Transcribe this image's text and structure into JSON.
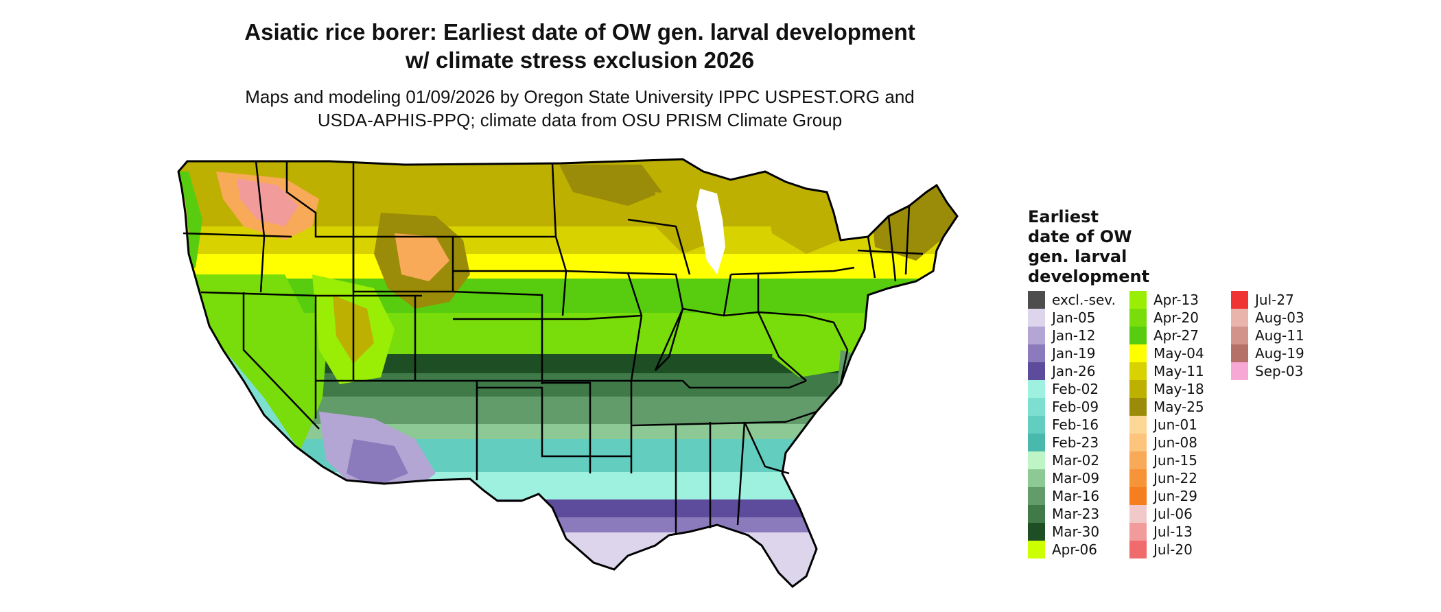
{
  "title_line1": "Asiatic rice borer: Earliest date of OW gen. larval development",
  "title_line2": "w/ climate stress exclusion 2026",
  "subtitle_line1": "Maps and modeling 01/09/2026 by Oregon State University IPPC USPEST.ORG and",
  "subtitle_line2": "USDA-APHIS-PPQ; climate data from OSU PRISM Climate Group",
  "map": {
    "region": "Contiguous United States",
    "variable": "Earliest date of OW gen. larval development",
    "zones": [
      {
        "name": "excl.-sev.",
        "color": "#4d4d4d"
      },
      {
        "name": "Jan-05",
        "color": "#dcd5ec"
      },
      {
        "name": "Jan-12",
        "color": "#b3a6d4"
      },
      {
        "name": "Jan-19",
        "color": "#8c7bbc"
      },
      {
        "name": "Jan-26",
        "color": "#5d4b9c"
      },
      {
        "name": "Feb-02",
        "color": "#9ef0df"
      },
      {
        "name": "Feb-09",
        "color": "#7ddfcf"
      },
      {
        "name": "Feb-16",
        "color": "#63cdbf"
      },
      {
        "name": "Feb-23",
        "color": "#49b8ad"
      },
      {
        "name": "Mar-02",
        "color": "#bff5c6"
      },
      {
        "name": "Mar-09",
        "color": "#8cc995"
      },
      {
        "name": "Mar-16",
        "color": "#629c6a"
      },
      {
        "name": "Mar-23",
        "color": "#3f7a48"
      },
      {
        "name": "Mar-30",
        "color": "#1e4e24"
      },
      {
        "name": "Apr-06",
        "color": "#ccff00"
      },
      {
        "name": "Apr-13",
        "color": "#9aee06"
      },
      {
        "name": "Apr-20",
        "color": "#78dd0a"
      },
      {
        "name": "Apr-27",
        "color": "#58cd10"
      },
      {
        "name": "May-04",
        "color": "#ffff00"
      },
      {
        "name": "May-11",
        "color": "#d8d300"
      },
      {
        "name": "May-18",
        "color": "#bdb000"
      },
      {
        "name": "May-25",
        "color": "#9a8b08"
      },
      {
        "name": "Jun-01",
        "color": "#fdd795"
      },
      {
        "name": "Jun-08",
        "color": "#fcc47c"
      },
      {
        "name": "Jun-15",
        "color": "#f9aa58"
      },
      {
        "name": "Jun-22",
        "color": "#f89438"
      },
      {
        "name": "Jun-29",
        "color": "#f57e1f"
      },
      {
        "name": "Jul-06",
        "color": "#f2c9c9"
      },
      {
        "name": "Jul-13",
        "color": "#f29b9b"
      },
      {
        "name": "Jul-20",
        "color": "#f06b6b"
      },
      {
        "name": "Jul-27",
        "color": "#f03333"
      },
      {
        "name": "Aug-03",
        "color": "#e8b4ac"
      },
      {
        "name": "Aug-11",
        "color": "#d1938a"
      },
      {
        "name": "Aug-19",
        "color": "#b57068"
      },
      {
        "name": "Sep-03",
        "color": "#f7a8d4"
      }
    ]
  },
  "legend": {
    "title_lines": [
      "Earliest",
      "date of OW",
      "gen. larval",
      "development"
    ],
    "items": [
      {
        "label": "excl.-sev.",
        "color": "#4d4d4d"
      },
      {
        "label": "Jan-05",
        "color": "#dcd5ec"
      },
      {
        "label": "Jan-12",
        "color": "#b3a6d4"
      },
      {
        "label": "Jan-19",
        "color": "#8c7bbc"
      },
      {
        "label": "Jan-26",
        "color": "#5d4b9c"
      },
      {
        "label": "Feb-02",
        "color": "#9ef0df"
      },
      {
        "label": "Feb-09",
        "color": "#7ddfcf"
      },
      {
        "label": "Feb-16",
        "color": "#63cdbf"
      },
      {
        "label": "Feb-23",
        "color": "#49b8ad"
      },
      {
        "label": "Mar-02",
        "color": "#bff5c6"
      },
      {
        "label": "Mar-09",
        "color": "#8cc995"
      },
      {
        "label": "Mar-16",
        "color": "#629c6a"
      },
      {
        "label": "Mar-23",
        "color": "#3f7a48"
      },
      {
        "label": "Mar-30",
        "color": "#1e4e24"
      },
      {
        "label": "Apr-06",
        "color": "#ccff00"
      },
      {
        "label": "Apr-13",
        "color": "#9aee06"
      },
      {
        "label": "Apr-20",
        "color": "#78dd0a"
      },
      {
        "label": "Apr-27",
        "color": "#58cd10"
      },
      {
        "label": "May-04",
        "color": "#ffff00"
      },
      {
        "label": "May-11",
        "color": "#d8d300"
      },
      {
        "label": "May-18",
        "color": "#bdb000"
      },
      {
        "label": "May-25",
        "color": "#9a8b08"
      },
      {
        "label": "Jun-01",
        "color": "#fdd795"
      },
      {
        "label": "Jun-08",
        "color": "#fcc47c"
      },
      {
        "label": "Jun-15",
        "color": "#f9aa58"
      },
      {
        "label": "Jun-22",
        "color": "#f89438"
      },
      {
        "label": "Jun-29",
        "color": "#f57e1f"
      },
      {
        "label": "Jul-06",
        "color": "#f2c9c9"
      },
      {
        "label": "Jul-13",
        "color": "#f29b9b"
      },
      {
        "label": "Jul-20",
        "color": "#f06b6b"
      },
      {
        "label": "Jul-27",
        "color": "#f03333"
      },
      {
        "label": "Aug-03",
        "color": "#e8b4ac"
      },
      {
        "label": "Aug-11",
        "color": "#d1938a"
      },
      {
        "label": "Aug-19",
        "color": "#b57068"
      },
      {
        "label": "Sep-03",
        "color": "#f7a8d4"
      }
    ]
  }
}
